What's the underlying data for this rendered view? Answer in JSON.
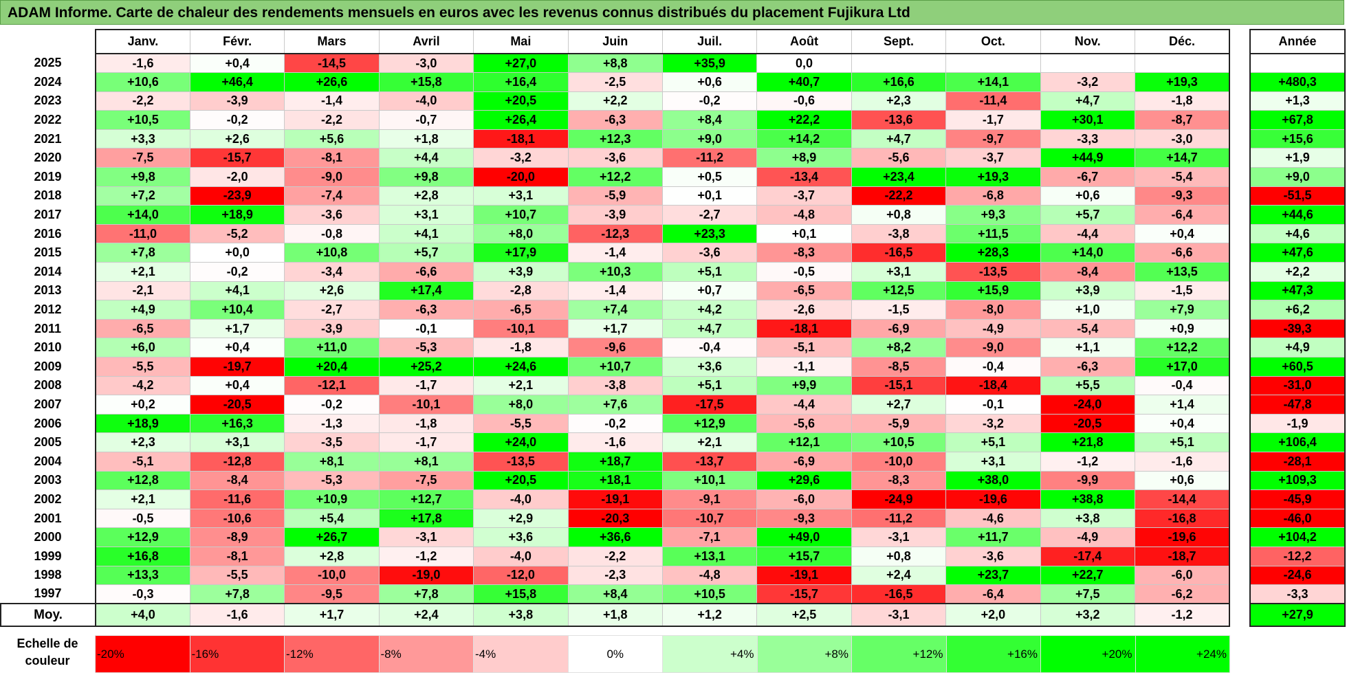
{
  "title": "ADAM Informe. Carte de chaleur des rendements mensuels en euros avec les revenus connus distribués du placement Fujikura Ltd",
  "chart_data": {
    "type": "heatmap",
    "title": "ADAM Informe. Carte de chaleur des rendements mensuels en euros avec les revenus connus distribués du placement Fujikura Ltd",
    "columns": [
      "Janv.",
      "Févr.",
      "Mars",
      "Avril",
      "Mai",
      "Juin",
      "Juil.",
      "Août",
      "Sept.",
      "Oct.",
      "Nov.",
      "Déc."
    ],
    "annual_header": "Année",
    "rows": [
      {
        "year": "2025",
        "values": [
          "-1,6",
          "+0,4",
          "-14,5",
          "-3,0",
          "+27,0",
          "+8,8",
          "+35,9",
          "0,0",
          "",
          "",
          "",
          ""
        ],
        "annual": ""
      },
      {
        "year": "2024",
        "values": [
          "+10,6",
          "+46,4",
          "+26,6",
          "+15,8",
          "+16,4",
          "-2,5",
          "+0,6",
          "+40,7",
          "+16,6",
          "+14,1",
          "-3,2",
          "+19,3"
        ],
        "annual": "+480,3"
      },
      {
        "year": "2023",
        "values": [
          "-2,2",
          "-3,9",
          "-1,4",
          "-4,0",
          "+20,5",
          "+2,2",
          "-0,2",
          "-0,6",
          "+2,3",
          "-11,4",
          "+4,7",
          "-1,8"
        ],
        "annual": "+1,3"
      },
      {
        "year": "2022",
        "values": [
          "+10,5",
          "-0,2",
          "-2,2",
          "-0,7",
          "+26,4",
          "-6,3",
          "+8,4",
          "+22,2",
          "-13,6",
          "-1,7",
          "+30,1",
          "-8,7"
        ],
        "annual": "+67,8"
      },
      {
        "year": "2021",
        "values": [
          "+3,3",
          "+2,6",
          "+5,6",
          "+1,8",
          "-18,1",
          "+12,3",
          "+9,0",
          "+14,2",
          "+4,7",
          "-9,7",
          "-3,3",
          "-3,0"
        ],
        "annual": "+15,6"
      },
      {
        "year": "2020",
        "values": [
          "-7,5",
          "-15,7",
          "-8,1",
          "+4,4",
          "-3,2",
          "-3,6",
          "-11,2",
          "+8,9",
          "-5,6",
          "-3,7",
          "+44,9",
          "+14,7"
        ],
        "annual": "+1,9"
      },
      {
        "year": "2019",
        "values": [
          "+9,8",
          "-2,0",
          "-9,0",
          "+9,8",
          "-20,0",
          "+12,2",
          "+0,5",
          "-13,4",
          "+23,4",
          "+19,3",
          "-6,7",
          "-5,4"
        ],
        "annual": "+9,0"
      },
      {
        "year": "2018",
        "values": [
          "+7,2",
          "-23,9",
          "-7,4",
          "+2,8",
          "+3,1",
          "-5,9",
          "+0,1",
          "-3,7",
          "-22,2",
          "-6,8",
          "+0,6",
          "-9,3"
        ],
        "annual": "-51,5"
      },
      {
        "year": "2017",
        "values": [
          "+14,0",
          "+18,9",
          "-3,6",
          "+3,1",
          "+10,7",
          "-3,9",
          "-2,7",
          "-4,8",
          "+0,8",
          "+9,3",
          "+5,7",
          "-6,4"
        ],
        "annual": "+44,6"
      },
      {
        "year": "2016",
        "values": [
          "-11,0",
          "-5,2",
          "-0,8",
          "+4,1",
          "+8,0",
          "-12,3",
          "+23,3",
          "+0,1",
          "-3,8",
          "+11,5",
          "-4,4",
          "+0,4"
        ],
        "annual": "+4,6"
      },
      {
        "year": "2015",
        "values": [
          "+7,8",
          "+0,0",
          "+10,8",
          "+5,7",
          "+17,9",
          "-1,4",
          "-3,6",
          "-8,3",
          "-16,5",
          "+28,3",
          "+14,0",
          "-6,6"
        ],
        "annual": "+47,6"
      },
      {
        "year": "2014",
        "values": [
          "+2,1",
          "-0,2",
          "-3,4",
          "-6,6",
          "+3,9",
          "+10,3",
          "+5,1",
          "-0,5",
          "+3,1",
          "-13,5",
          "-8,4",
          "+13,5"
        ],
        "annual": "+2,2"
      },
      {
        "year": "2013",
        "values": [
          "-2,1",
          "+4,1",
          "+2,6",
          "+17,4",
          "-2,8",
          "-1,4",
          "+0,7",
          "-6,5",
          "+12,5",
          "+15,9",
          "+3,9",
          "-1,5"
        ],
        "annual": "+47,3"
      },
      {
        "year": "2012",
        "values": [
          "+4,9",
          "+10,4",
          "-2,7",
          "-6,3",
          "-6,5",
          "+7,4",
          "+4,2",
          "-2,6",
          "-1,5",
          "-8,0",
          "+1,0",
          "+7,9"
        ],
        "annual": "+6,2"
      },
      {
        "year": "2011",
        "values": [
          "-6,5",
          "+1,7",
          "-3,9",
          "-0,1",
          "-10,1",
          "+1,7",
          "+4,7",
          "-18,1",
          "-6,9",
          "-4,9",
          "-5,4",
          "+0,9"
        ],
        "annual": "-39,3"
      },
      {
        "year": "2010",
        "values": [
          "+6,0",
          "+0,4",
          "+11,0",
          "-5,3",
          "-1,8",
          "-9,6",
          "-0,4",
          "-5,1",
          "+8,2",
          "-9,0",
          "+1,1",
          "+12,2"
        ],
        "annual": "+4,9"
      },
      {
        "year": "2009",
        "values": [
          "-5,5",
          "-19,7",
          "+20,4",
          "+25,2",
          "+24,6",
          "+10,7",
          "+3,6",
          "-1,1",
          "-8,5",
          "-0,4",
          "-6,3",
          "+17,0"
        ],
        "annual": "+60,5"
      },
      {
        "year": "2008",
        "values": [
          "-4,2",
          "+0,4",
          "-12,1",
          "-1,7",
          "+2,1",
          "-3,8",
          "+5,1",
          "+9,9",
          "-15,1",
          "-18,4",
          "+5,5",
          "-0,4"
        ],
        "annual": "-31,0"
      },
      {
        "year": "2007",
        "values": [
          "+0,2",
          "-20,5",
          "-0,2",
          "-10,1",
          "+8,0",
          "+7,6",
          "-17,5",
          "-4,4",
          "+2,7",
          "-0,1",
          "-24,0",
          "+1,4"
        ],
        "annual": "-47,8"
      },
      {
        "year": "2006",
        "values": [
          "+18,9",
          "+16,3",
          "-1,3",
          "-1,8",
          "-5,5",
          "-0,2",
          "+12,9",
          "-5,6",
          "-5,9",
          "-3,2",
          "-20,5",
          "+0,4"
        ],
        "annual": "-1,9"
      },
      {
        "year": "2005",
        "values": [
          "+2,3",
          "+3,1",
          "-3,5",
          "-1,7",
          "+24,0",
          "-1,6",
          "+2,1",
          "+12,1",
          "+10,5",
          "+5,1",
          "+21,8",
          "+5,1"
        ],
        "annual": "+106,4"
      },
      {
        "year": "2004",
        "values": [
          "-5,1",
          "-12,8",
          "+8,1",
          "+8,1",
          "-13,5",
          "+18,7",
          "-13,7",
          "-6,9",
          "-10,0",
          "+3,1",
          "-1,2",
          "-1,6"
        ],
        "annual": "-28,1"
      },
      {
        "year": "2003",
        "values": [
          "+12,8",
          "-8,4",
          "-5,3",
          "-7,5",
          "+20,5",
          "+18,1",
          "+10,1",
          "+29,6",
          "-8,3",
          "+38,0",
          "-9,9",
          "+0,6"
        ],
        "annual": "+109,3"
      },
      {
        "year": "2002",
        "values": [
          "+2,1",
          "-11,6",
          "+10,9",
          "+12,7",
          "-4,0",
          "-19,1",
          "-9,1",
          "-6,0",
          "-24,9",
          "-19,6",
          "+38,8",
          "-14,4"
        ],
        "annual": "-45,9"
      },
      {
        "year": "2001",
        "values": [
          "-0,5",
          "-10,6",
          "+5,4",
          "+17,8",
          "+2,9",
          "-20,3",
          "-10,7",
          "-9,3",
          "-11,2",
          "-4,6",
          "+3,8",
          "-16,8"
        ],
        "annual": "-46,0"
      },
      {
        "year": "2000",
        "values": [
          "+12,9",
          "-8,9",
          "+26,7",
          "-3,1",
          "+3,6",
          "+36,6",
          "-7,1",
          "+49,0",
          "-3,1",
          "+11,7",
          "-4,9",
          "-19,6"
        ],
        "annual": "+104,2"
      },
      {
        "year": "1999",
        "values": [
          "+16,8",
          "-8,1",
          "+2,8",
          "-1,2",
          "-4,0",
          "-2,2",
          "+13,1",
          "+15,7",
          "+0,8",
          "-3,6",
          "-17,4",
          "-18,7"
        ],
        "annual": "-12,2"
      },
      {
        "year": "1998",
        "values": [
          "+13,3",
          "-5,5",
          "-10,0",
          "-19,0",
          "-12,0",
          "-2,3",
          "-4,8",
          "-19,1",
          "+2,4",
          "+23,7",
          "+22,7",
          "-6,0"
        ],
        "annual": "-24,6"
      },
      {
        "year": "1997",
        "values": [
          "-0,3",
          "+7,8",
          "-9,5",
          "+7,8",
          "+15,8",
          "+8,4",
          "+10,5",
          "-15,7",
          "-16,5",
          "-6,4",
          "+7,5",
          "-6,2"
        ],
        "annual": "-3,3"
      }
    ],
    "average": {
      "label": "Moy.",
      "values": [
        "+4,0",
        "-1,6",
        "+1,7",
        "+2,4",
        "+3,8",
        "+1,8",
        "+1,2",
        "+2,5",
        "-3,1",
        "+2,0",
        "+3,2",
        "-1,2"
      ],
      "annual": "+27,9"
    },
    "color_scale": {
      "label": "Echelle de couleur",
      "steps": [
        "-20%",
        "-16%",
        "-12%",
        "-8%",
        "-4%",
        "0%",
        "+4%",
        "+8%",
        "+12%",
        "+16%",
        "+20%",
        "+24%"
      ],
      "colors": [
        "#ff0000",
        "#ff3333",
        "#ff6666",
        "#ff9999",
        "#ffcccc",
        "#ffffff",
        "#ccffcc",
        "#99ff99",
        "#66ff66",
        "#33ff33",
        "#00ff00",
        "#00ff00"
      ],
      "negative_color": "#ff0000",
      "positive_color": "#00ff00",
      "neutral_color": "#ffffff"
    }
  }
}
